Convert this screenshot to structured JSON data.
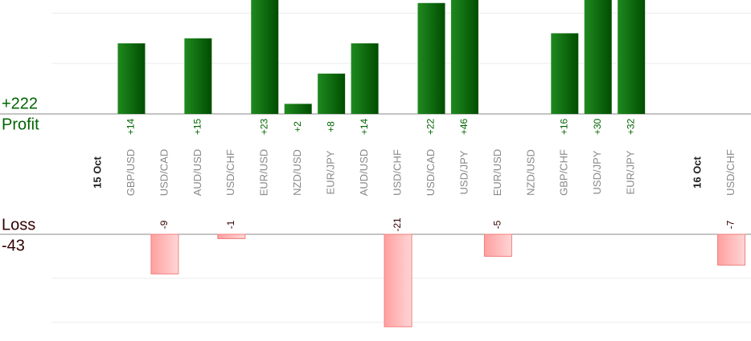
{
  "chart_data": {
    "type": "bar",
    "categories": [
      null,
      "GBP/USD",
      "USD/CAD",
      "AUD/USD",
      "USD/CHF",
      "EUR/USD",
      "NZD/USD",
      "EUR/JPY",
      "AUD/USD",
      "USD/CHF",
      "USD/CAD",
      "USD/JPY",
      "EUR/USD",
      "NZD/USD",
      "GBP/CHF",
      "USD/JPY",
      "EUR/JPY",
      null,
      null,
      "USD/CHF"
    ],
    "dates": [
      "15 Oct",
      null,
      null,
      null,
      null,
      null,
      null,
      null,
      null,
      null,
      null,
      null,
      null,
      null,
      null,
      null,
      null,
      null,
      "16 Oct",
      null
    ],
    "ylim": [
      0,
      22.6
    ],
    "yticks": [
      0,
      10,
      20
    ],
    "y2lim": [
      -21.5,
      0
    ],
    "y2ticks": [
      -20,
      -10,
      0
    ],
    "grid": true,
    "series": [
      {
        "name": "Profit",
        "color": "#006400",
        "total": 222,
        "total_label": "+222",
        "values": [
          null,
          14,
          null,
          15,
          null,
          23,
          2,
          8,
          14,
          null,
          22,
          46,
          null,
          null,
          16,
          30,
          32,
          null,
          null,
          null
        ],
        "value_labels": [
          null,
          "+14",
          null,
          "+15",
          null,
          "+23",
          "+2",
          "+8",
          "+14",
          null,
          "+22",
          "+46",
          null,
          null,
          "+16",
          "+30",
          "+32",
          null,
          null,
          null
        ]
      },
      {
        "name": "Loss",
        "color": "#ffaaaa",
        "axis": "y2",
        "total": -43,
        "total_label": "-43",
        "values": [
          null,
          null,
          -9,
          null,
          -1,
          null,
          null,
          null,
          null,
          -21,
          null,
          null,
          -5,
          null,
          null,
          null,
          null,
          null,
          null,
          -7
        ],
        "value_labels": [
          null,
          null,
          "-9",
          null,
          "-1",
          null,
          null,
          null,
          null,
          "-21",
          null,
          null,
          "-5",
          null,
          null,
          null,
          null,
          null,
          null,
          "-7"
        ]
      }
    ]
  }
}
